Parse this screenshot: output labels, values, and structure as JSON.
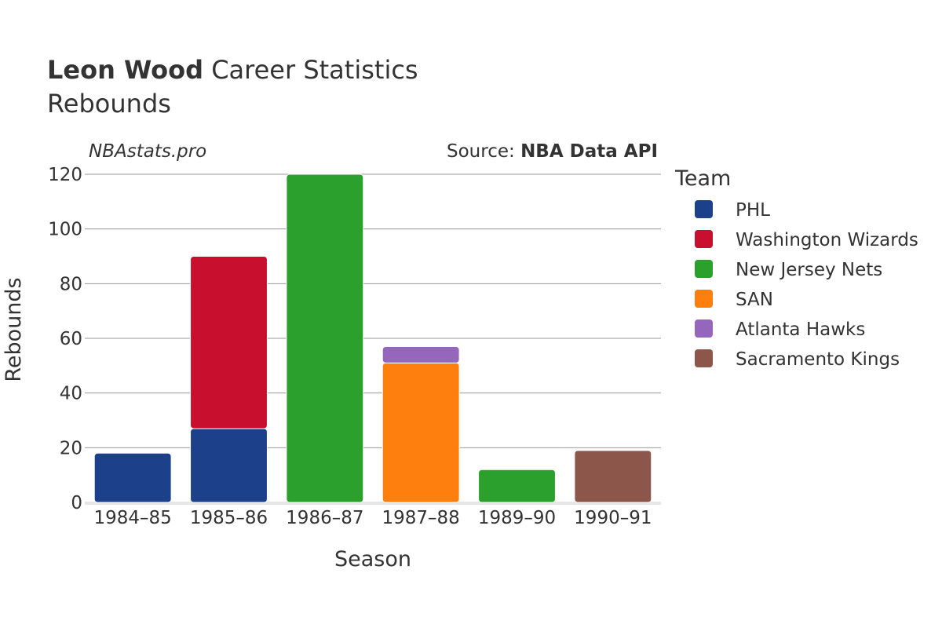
{
  "header": {
    "title_bold": "Leon Wood",
    "title_rest": " Career Statistics",
    "subtitle": "Rebounds",
    "brand": "NBAstats.pro",
    "source_prefix": "Source: ",
    "source_name": "NBA Data API"
  },
  "legend": {
    "title": "Team"
  },
  "chart_data": {
    "type": "bar",
    "stacked": true,
    "title": "Leon Wood Career Statistics",
    "subtitle": "Rebounds",
    "xlabel": "Season",
    "ylabel": "Rebounds",
    "ylim": [
      0,
      120
    ],
    "yticks": [
      0,
      20,
      40,
      60,
      80,
      100,
      120
    ],
    "grid": true,
    "legend_position": "right",
    "categories": [
      "1984–85",
      "1985–86",
      "1986–87",
      "1987–88",
      "1989–90",
      "1990–91"
    ],
    "series": [
      {
        "name": "PHL",
        "color": "#1c418a",
        "values": [
          18,
          27,
          0,
          0,
          0,
          0
        ]
      },
      {
        "name": "Washington Wizards",
        "color": "#c8102e",
        "values": [
          0,
          63,
          0,
          0,
          0,
          0
        ]
      },
      {
        "name": "New Jersey Nets",
        "color": "#2ca02c",
        "values": [
          0,
          0,
          120,
          0,
          12,
          0
        ]
      },
      {
        "name": "SAN",
        "color": "#ff7f0e",
        "values": [
          0,
          0,
          0,
          51,
          0,
          0
        ]
      },
      {
        "name": "Atlanta Hawks",
        "color": "#9467bd",
        "values": [
          0,
          0,
          0,
          6,
          0,
          0
        ]
      },
      {
        "name": "Sacramento Kings",
        "color": "#8c564b",
        "values": [
          0,
          0,
          0,
          0,
          0,
          19
        ]
      }
    ]
  }
}
